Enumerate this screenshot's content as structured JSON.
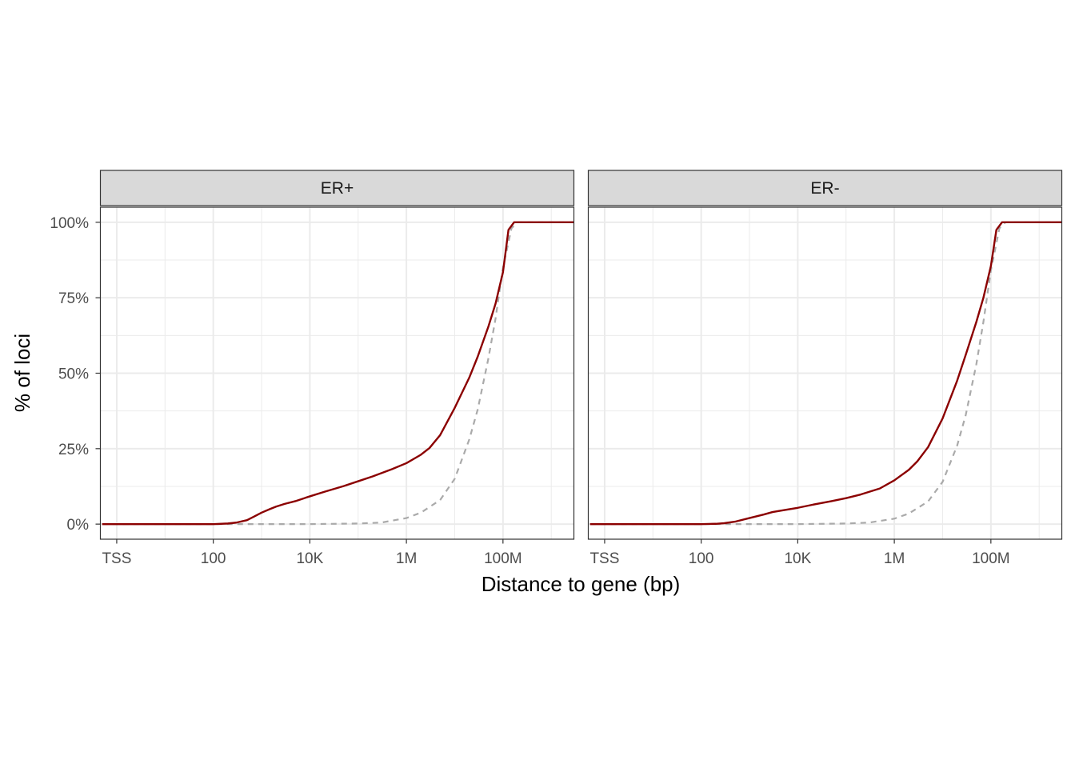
{
  "chart_data": {
    "type": "line",
    "xlabel": "Distance to gene (bp)",
    "ylabel": "% of loci",
    "x_scale": "log10",
    "x_ticks": [
      {
        "value": 1,
        "label": "TSS"
      },
      {
        "value": 100,
        "label": "100"
      },
      {
        "value": 10000,
        "label": "10K"
      },
      {
        "value": 1000000,
        "label": "1M"
      },
      {
        "value": 100000000,
        "label": "100M"
      }
    ],
    "y_ticks": [
      {
        "value": 0,
        "label": "0%"
      },
      {
        "value": 25,
        "label": "25%"
      },
      {
        "value": 50,
        "label": "50%"
      },
      {
        "value": 75,
        "label": "75%"
      },
      {
        "value": 100,
        "label": "100%"
      }
    ],
    "xlim": [
      0.45,
      3000000000
    ],
    "ylim": [
      -5,
      105
    ],
    "grid": true,
    "colors": {
      "observed": "#8B0000",
      "background": "#AAAAAA",
      "strip_fill": "#D9D9D9",
      "grid": "#EBEBEB",
      "panel_border": "#333333"
    },
    "facets": [
      {
        "label": "ER+",
        "series": [
          {
            "style": "solid",
            "x": [
              0.5,
              1,
              10,
              100,
              200,
              300,
              500,
              700,
              1000,
              1500,
              2000,
              3000,
              5000,
              10000,
              20000,
              50000,
              100000,
              200000,
              500000,
              1000000,
              2000000,
              3000000,
              5000000,
              10000000,
              20000000,
              30000000,
              50000000,
              70000000,
              100000000,
              130000000,
              170000000,
              200000000,
              1000000000,
              3000000000
            ],
            "y": [
              0,
              0,
              0,
              0,
              0.2,
              0.5,
              1.3,
              2.5,
              3.8,
              5.0,
              5.8,
              6.7,
              7.6,
              9.2,
              10.7,
              12.6,
              14.2,
              15.8,
              18.2,
              20.2,
              23.0,
              25.2,
              29.5,
              38.5,
              48.5,
              55.5,
              65.5,
              73.0,
              83.5,
              97.5,
              100,
              100,
              100,
              100
            ]
          },
          {
            "style": "dashed",
            "x": [
              0.5,
              1,
              100,
              10000,
              100000,
              300000,
              1000000,
              2000000,
              5000000,
              10000000,
              20000000,
              30000000,
              50000000,
              70000000,
              100000000,
              150000000,
              200000000,
              1000000000,
              3000000000
            ],
            "y": [
              0,
              0,
              0,
              0,
              0.2,
              0.5,
              2.0,
              3.8,
              8.0,
              15.0,
              28.0,
              38.0,
              55.0,
              68.0,
              85.0,
              98.0,
              100,
              100,
              100
            ]
          }
        ]
      },
      {
        "label": "ER-",
        "series": [
          {
            "style": "solid",
            "x": [
              0.5,
              1,
              10,
              100,
              200,
              300,
              500,
              1000,
              2000,
              3000,
              5000,
              10000,
              20000,
              50000,
              100000,
              200000,
              500000,
              1000000,
              2000000,
              3000000,
              5000000,
              10000000,
              20000000,
              30000000,
              50000000,
              70000000,
              100000000,
              130000000,
              170000000,
              200000000,
              1000000000,
              3000000000
            ],
            "y": [
              0,
              0,
              0,
              0,
              0.1,
              0.3,
              0.8,
              2.0,
              3.2,
              4.0,
              4.6,
              5.4,
              6.4,
              7.6,
              8.6,
              9.8,
              11.8,
              14.5,
              18.0,
              20.8,
              25.5,
              35.0,
              47.5,
              56.0,
              67.0,
              75.0,
              85.5,
              97.5,
              100,
              100,
              100,
              100
            ]
          },
          {
            "style": "dashed",
            "x": [
              0.5,
              1,
              100,
              10000,
              100000,
              300000,
              1000000,
              2000000,
              5000000,
              10000000,
              20000000,
              30000000,
              50000000,
              70000000,
              100000000,
              150000000,
              200000000,
              1000000000,
              3000000000
            ],
            "y": [
              0,
              0,
              0,
              0,
              0.2,
              0.5,
              1.8,
              3.5,
              7.5,
              14.0,
              26.0,
              36.0,
              53.0,
              67.0,
              84.0,
              98.0,
              100,
              100,
              100
            ]
          }
        ]
      }
    ]
  }
}
